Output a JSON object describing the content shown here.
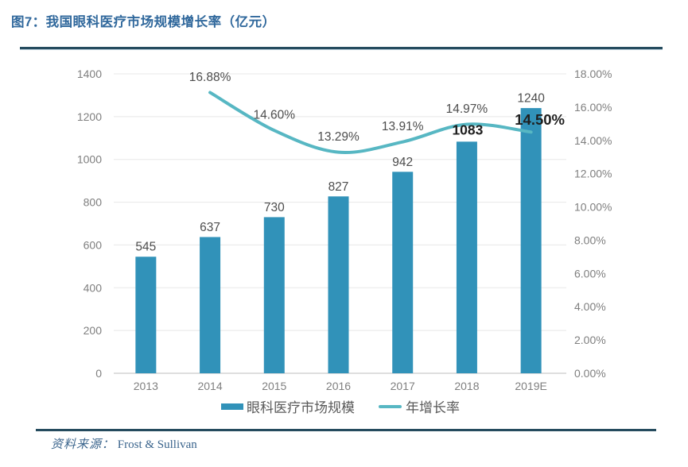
{
  "figure": {
    "title": "图7：我国眼科医疗市场规模增长率（亿元）"
  },
  "legend": {
    "bar_label": "眼科医疗市场规模",
    "line_label": "年增长率"
  },
  "source": {
    "prefix": "资料来源：",
    "name": "Frost & Sullivan"
  },
  "colors": {
    "bar": "#3192B9",
    "line": "#57B7C3",
    "gridline": "#E8E8E8",
    "axis_line": "#C9C9C9",
    "tick": "#7F7F7F",
    "label": "#4D4D4D",
    "label_emph": "#1F1F1F",
    "title": "#30689C",
    "rule": "#254B5E",
    "source_text": "#3A648C",
    "legend_text": "#595959"
  },
  "chart_data": {
    "type": "bar",
    "title": "图7：我国眼科医疗市场规模增长率（亿元）",
    "categories": [
      "2013",
      "2014",
      "2015",
      "2016",
      "2017",
      "2018",
      "2019E"
    ],
    "series": [
      {
        "name": "眼科医疗市场规模",
        "type": "bar",
        "axis": "left",
        "values": [
          545,
          637,
          730,
          827,
          942,
          1083,
          1240
        ],
        "labels": [
          "545",
          "637",
          "730",
          "827",
          "942",
          "1083",
          "1240"
        ],
        "emphasis": [
          false,
          false,
          false,
          false,
          false,
          true,
          false
        ]
      },
      {
        "name": "年增长率",
        "type": "line",
        "axis": "right",
        "values": [
          null,
          16.88,
          14.6,
          13.29,
          13.91,
          14.97,
          14.5
        ],
        "labels": [
          null,
          "16.88%",
          "14.60%",
          "13.29%",
          "13.91%",
          "14.97%",
          "14.50%"
        ],
        "emphasis": [
          false,
          false,
          false,
          false,
          false,
          false,
          true
        ]
      }
    ],
    "left_axis": {
      "min": 0,
      "max": 1400,
      "step": 200,
      "ticks": [
        "0",
        "200",
        "400",
        "600",
        "800",
        "1000",
        "1200",
        "1400"
      ]
    },
    "right_axis": {
      "min": 0,
      "max": 18,
      "step": 2,
      "ticks": [
        "0.00%",
        "2.00%",
        "4.00%",
        "6.00%",
        "8.00%",
        "10.00%",
        "12.00%",
        "14.00%",
        "16.00%",
        "18.00%"
      ]
    },
    "grid": true,
    "legend_position": "bottom",
    "xlabel": "",
    "ylabel_left": "亿元",
    "ylabel_right": "%"
  }
}
